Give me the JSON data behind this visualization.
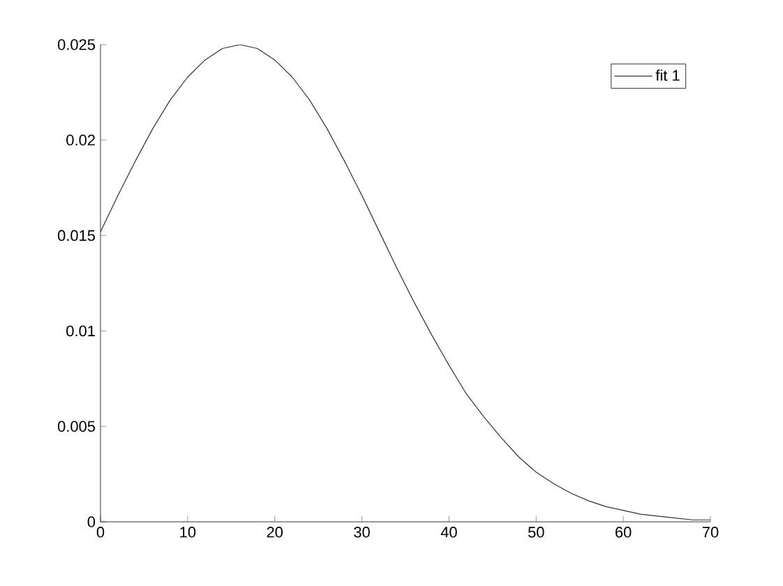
{
  "chart_data": {
    "type": "line",
    "x": [
      0,
      2,
      4,
      6,
      8,
      10,
      12,
      14,
      16,
      18,
      20,
      22,
      24,
      26,
      28,
      30,
      32,
      34,
      36,
      38,
      40,
      42,
      44,
      46,
      48,
      50,
      52,
      54,
      56,
      58,
      60,
      62,
      64,
      66,
      68,
      70
    ],
    "series": [
      {
        "name": "fit 1",
        "color": "#333333",
        "values": [
          0.0152,
          0.0171,
          0.0189,
          0.0206,
          0.0221,
          0.0233,
          0.0242,
          0.0248,
          0.025,
          0.0248,
          0.0242,
          0.0233,
          0.0221,
          0.0206,
          0.0189,
          0.0171,
          0.0152,
          0.0133,
          0.0115,
          0.0098,
          0.0082,
          0.0067,
          0.0055,
          0.0044,
          0.0034,
          0.0026,
          0.002,
          0.0015,
          0.0011,
          0.0008,
          0.0006,
          0.0004,
          0.0003,
          0.0002,
          0.0001,
          0.0001
        ]
      }
    ],
    "xlim": [
      0,
      70
    ],
    "ylim": [
      0,
      0.025
    ],
    "xticks": [
      0,
      10,
      20,
      30,
      40,
      50,
      60,
      70
    ],
    "yticks": [
      0,
      0.005,
      0.01,
      0.015,
      0.02,
      0.025
    ],
    "legend": "top right",
    "line_style": "solid",
    "marker": "none"
  }
}
